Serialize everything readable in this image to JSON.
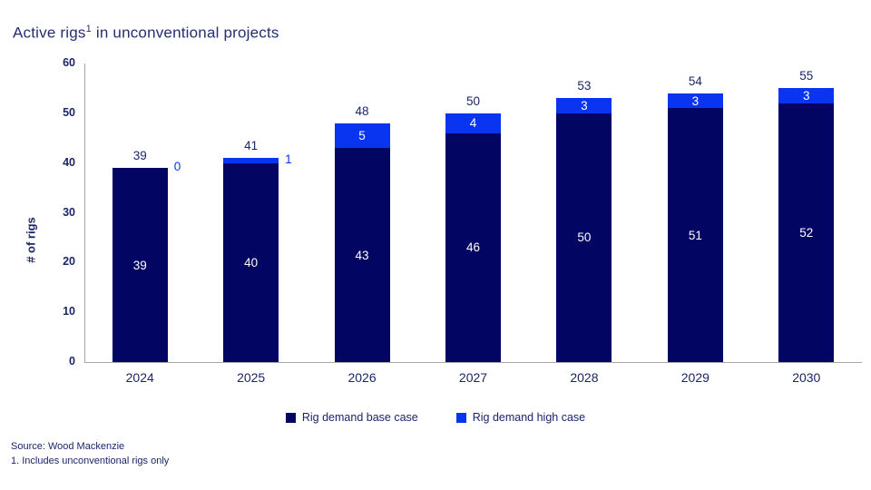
{
  "chart_data": {
    "type": "bar",
    "stacked": true,
    "title": {
      "pre": "Active rigs",
      "sup": "1",
      "post": " in unconventional projects"
    },
    "categories": [
      "2024",
      "2025",
      "2026",
      "2027",
      "2028",
      "2029",
      "2030"
    ],
    "series": [
      {
        "name": "Rig demand base case",
        "color": "#020662",
        "values": [
          39,
          40,
          43,
          46,
          50,
          51,
          52
        ]
      },
      {
        "name": "Rig demand high case",
        "color": "#0a35f0",
        "values": [
          0,
          1,
          5,
          4,
          3,
          3,
          3
        ]
      }
    ],
    "totals": [
      39,
      41,
      48,
      50,
      53,
      54,
      55
    ],
    "ylabel": "# of rigs",
    "yticks": [
      0,
      10,
      20,
      30,
      40,
      50,
      60
    ],
    "ylim": [
      0,
      60
    ],
    "grid": false,
    "legend_position": "bottom"
  },
  "footer": {
    "source": "Source: Wood Mackenzie",
    "footnote": "1. Includes unconventional rigs only"
  }
}
